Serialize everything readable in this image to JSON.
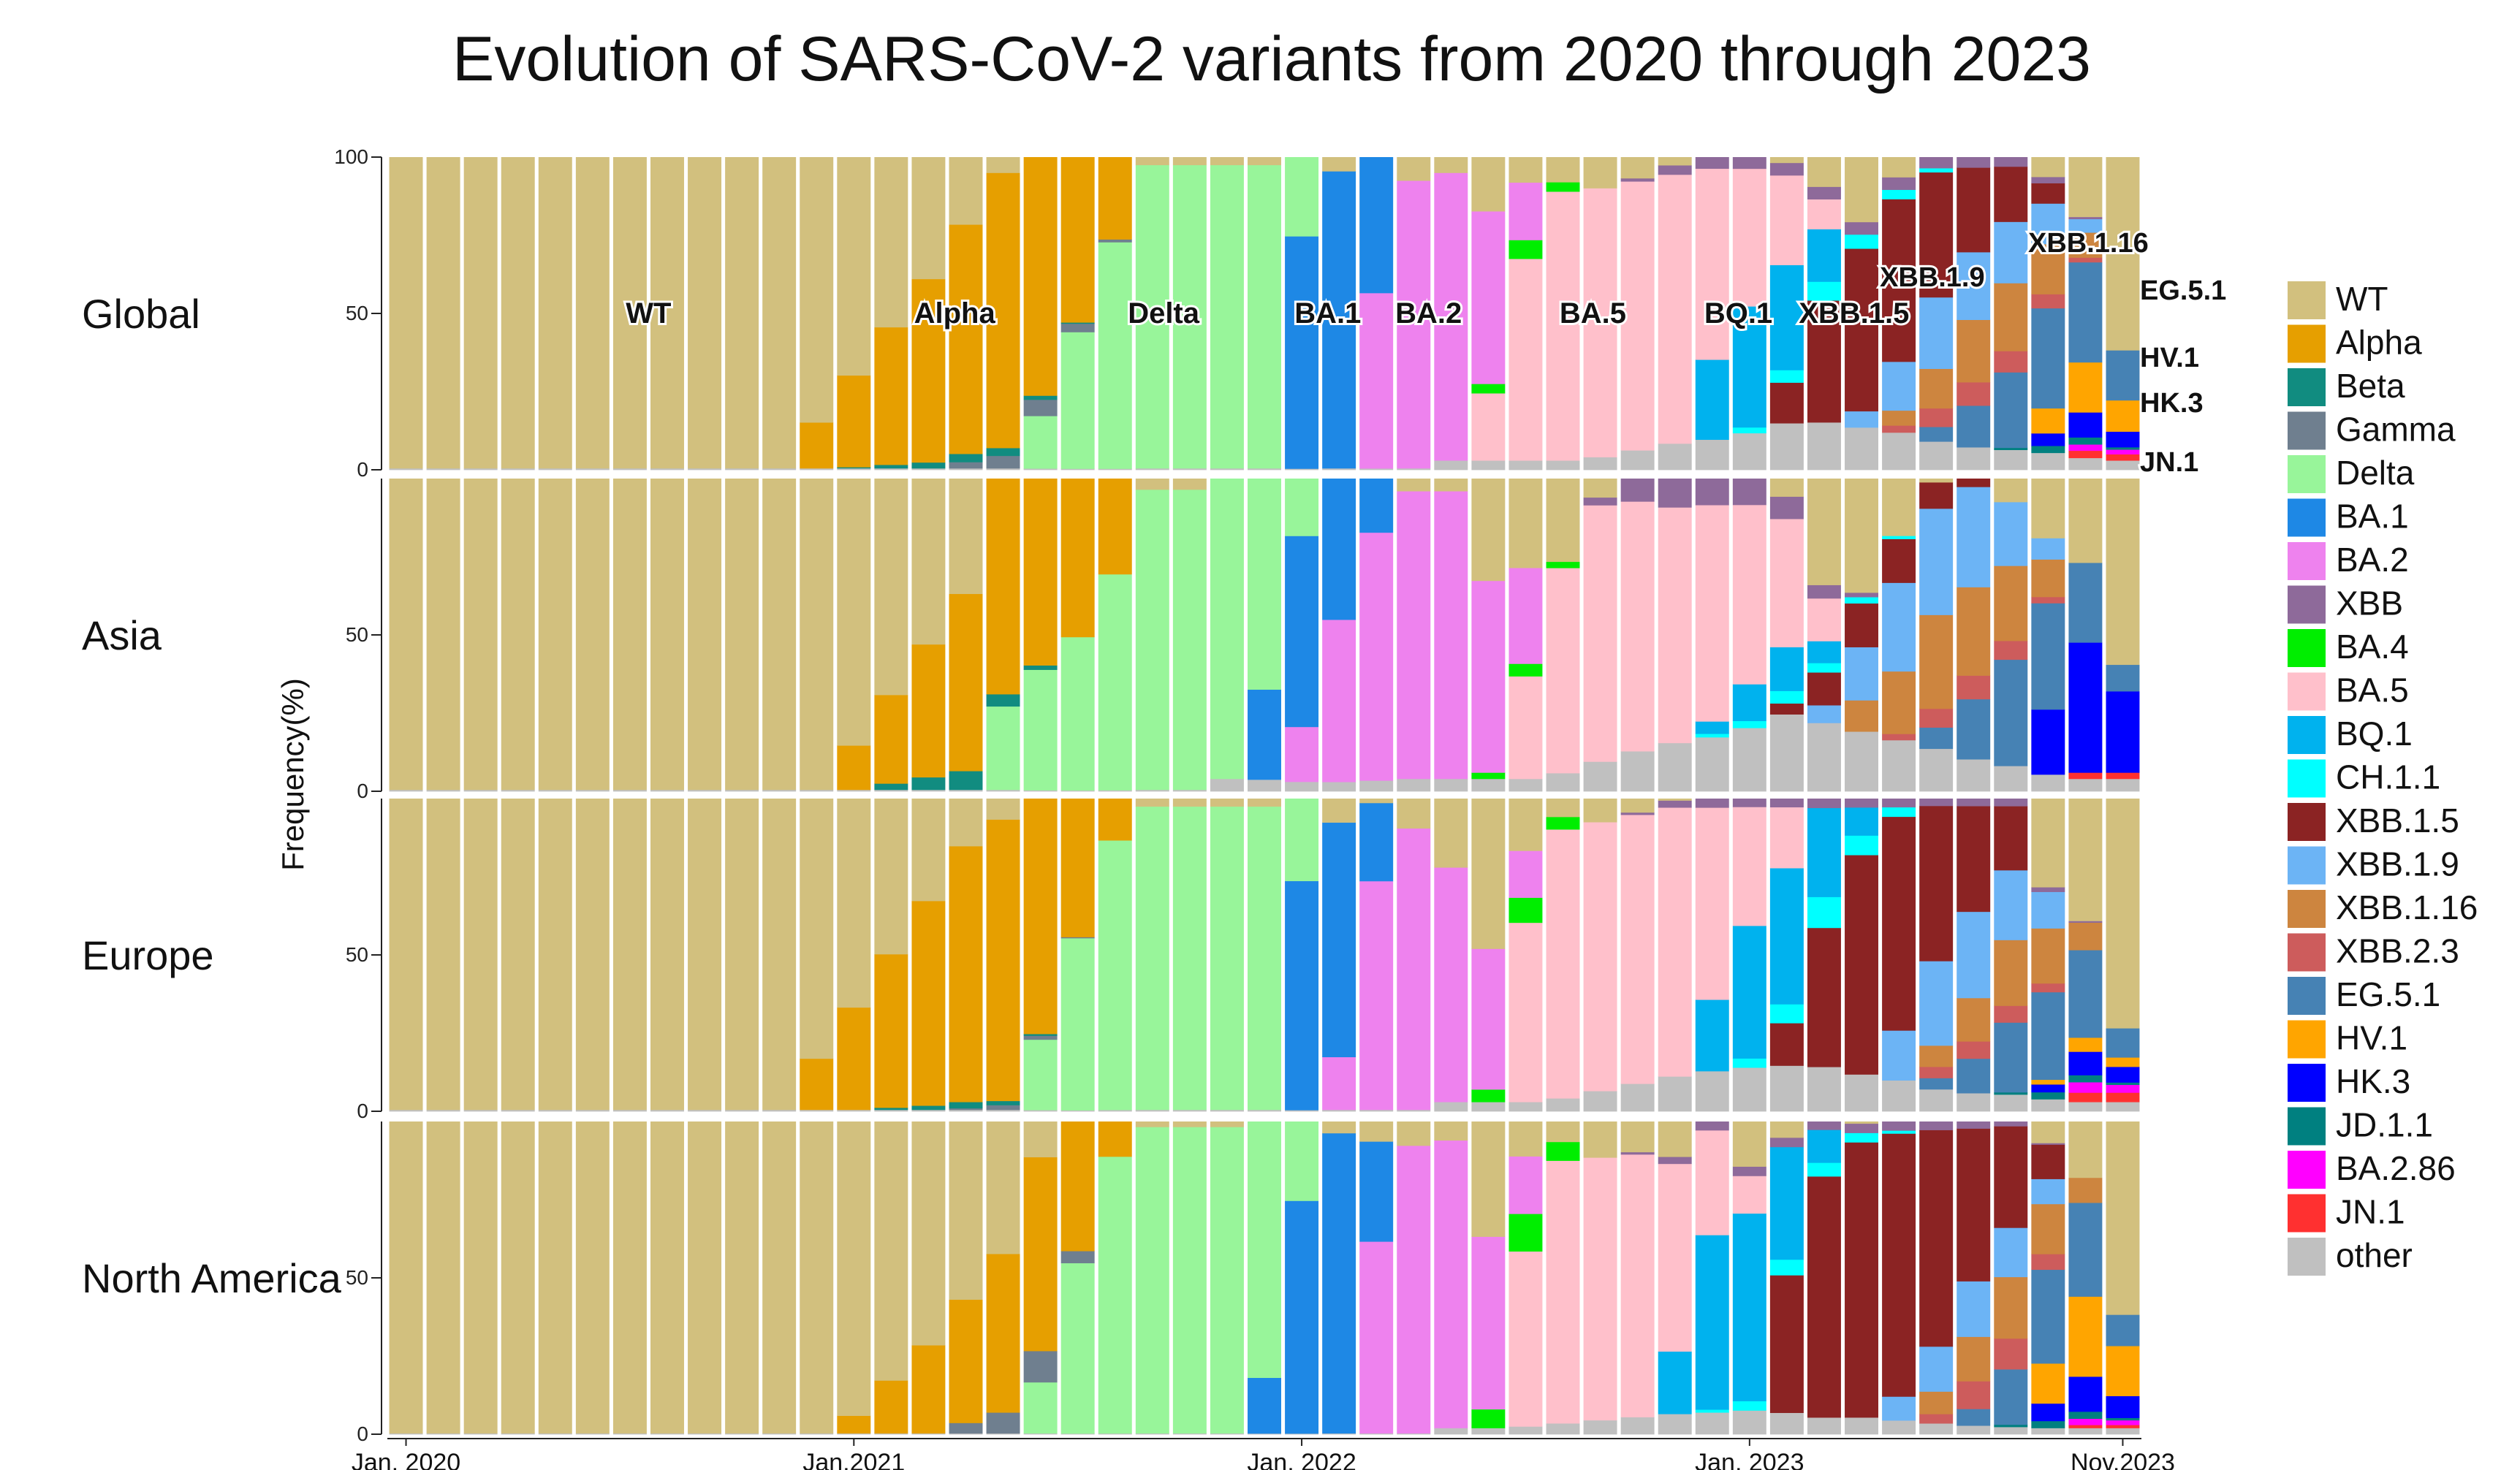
{
  "chart_data": {
    "type": "bar",
    "stacked": true,
    "title": "Evolution of SARS-CoV-2 variants from 2020 through 2023",
    "ylabel": "Frequency(%)",
    "ylim": [
      0,
      100
    ],
    "yticks": [
      "0",
      "50",
      "100"
    ],
    "xticks": [
      "Jan, 2020",
      "Jan,2021",
      "Jan, 2022",
      "Jan, 2023",
      "Nov,2023"
    ],
    "x_range": [
      "2020-01",
      "2023-11"
    ],
    "n_bars": 47,
    "legend_position": "right",
    "variants": [
      {
        "name": "WT",
        "color": "#D2C07E"
      },
      {
        "name": "Alpha",
        "color": "#E69F00"
      },
      {
        "name": "Beta",
        "color": "#118C80"
      },
      {
        "name": "Gamma",
        "color": "#6F7F8F"
      },
      {
        "name": "Delta",
        "color": "#98F59A"
      },
      {
        "name": "BA.1",
        "color": "#1E88E5"
      },
      {
        "name": "BA.2",
        "color": "#EE82EE"
      },
      {
        "name": "XBB",
        "color": "#8E6A9A"
      },
      {
        "name": "BA.4",
        "color": "#00EE00"
      },
      {
        "name": "BA.5",
        "color": "#FFC0CB"
      },
      {
        "name": "BQ.1",
        "color": "#00B2EE"
      },
      {
        "name": "CH.1.1",
        "color": "#00FFFF"
      },
      {
        "name": "XBB.1.5",
        "color": "#8B2323"
      },
      {
        "name": "XBB.1.9",
        "color": "#6CB4F5"
      },
      {
        "name": "XBB.1.16",
        "color": "#CD853F"
      },
      {
        "name": "XBB.2.3",
        "color": "#CD5C5C"
      },
      {
        "name": "EG.5.1",
        "color": "#4682B4"
      },
      {
        "name": "HV.1",
        "color": "#FFA500"
      },
      {
        "name": "HK.3",
        "color": "#0000FF"
      },
      {
        "name": "JD.1.1",
        "color": "#008080"
      },
      {
        "name": "BA.2.86",
        "color": "#FF00FF"
      },
      {
        "name": "JN.1",
        "color": "#FF3030"
      },
      {
        "name": "other",
        "color": "#C0C0C0"
      }
    ],
    "panels": [
      {
        "region": "Global"
      },
      {
        "region": "Asia"
      },
      {
        "region": "Europe"
      },
      {
        "region": "North America"
      }
    ],
    "annotations": [
      {
        "text": "WT",
        "x": 7
      },
      {
        "text": "Alpha",
        "x": 15.2
      },
      {
        "text": "Delta",
        "x": 20.8
      },
      {
        "text": "BA.1",
        "x": 25.2
      },
      {
        "text": "BA.2",
        "x": 27.9
      },
      {
        "text": "BA.5",
        "x": 32.3
      },
      {
        "text": "BQ.1",
        "x": 36.2
      },
      {
        "text": "XBB.1.5",
        "x": 39.3
      }
    ],
    "side_annotations": [
      "XBB.1.16",
      "XBB.1.9",
      "EG.5.1",
      "HV.1",
      "HK.3",
      "JN.1"
    ]
  }
}
